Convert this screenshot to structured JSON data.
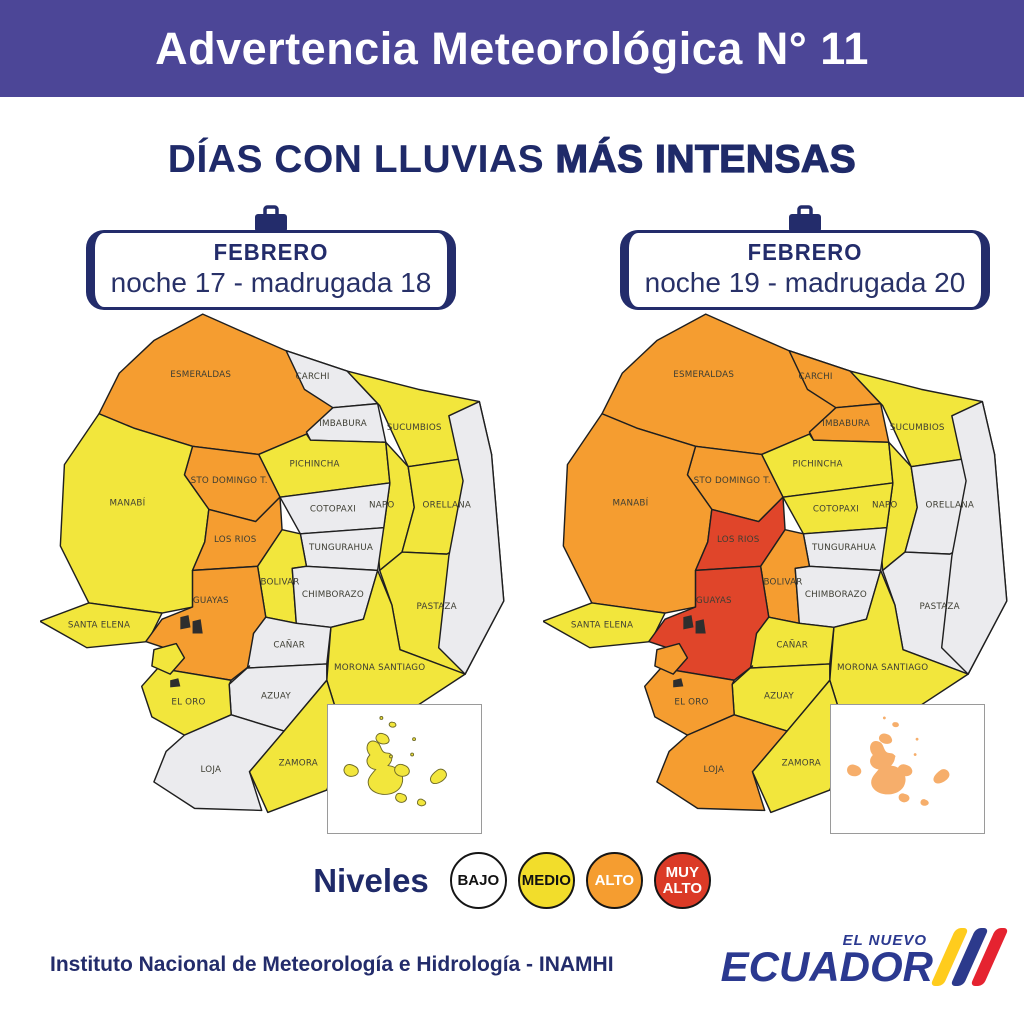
{
  "colors": {
    "header_bg": "#4c4697",
    "navy": "#232c6b",
    "border_ink": "#1f1f1f"
  },
  "header": {
    "title": "Advertencia Meteorológica N° 11"
  },
  "subtitle": {
    "normal": "DÍAS CON LLUVIAS ",
    "bold": "MÁS INTENSAS"
  },
  "level_colors": {
    "bajo": "#ebebee",
    "medio": "#f2e63c",
    "alto": "#f59d30",
    "muy_alto": "#e0452a"
  },
  "maps": [
    {
      "month": "FEBRERO",
      "date_range": "noche 17 - madrugada 18",
      "galapagos": {
        "fill": "#f2e63c",
        "stroke": "#6f6b28"
      },
      "levels": {
        "ESMERALDAS": "alto",
        "CARCHI": "bajo",
        "IMBABURA": "bajo",
        "PICHINCHA": "medio",
        "STO_DOMINGO": "alto",
        "SUCUMBIOS": "medio",
        "NAPO": "medio",
        "ORELLANA": "medio",
        "MANABI": "medio",
        "COTOPAXI": "bajo",
        "TUNGURAHUA": "bajo",
        "LOS_RIOS": "alto",
        "BOLIVAR": "medio",
        "PASTAZA": "medio",
        "CHIMBORAZO": "bajo",
        "SANTA_ELENA": "medio",
        "GUAYAS": "alto",
        "CANAR": "bajo",
        "MORONA": "medio",
        "AZUAY": "bajo",
        "EL_ORO": "medio",
        "LOJA": "bajo",
        "ZAMORA": "medio",
        "ORIENTE_E": "bajo",
        "PUNA": "medio"
      }
    },
    {
      "month": "FEBRERO",
      "date_range": "noche 19 - madrugada 20",
      "galapagos": {
        "fill": "#f6ae6b",
        "stroke": "none"
      },
      "levels": {
        "ESMERALDAS": "alto",
        "CARCHI": "alto",
        "IMBABURA": "alto",
        "PICHINCHA": "medio",
        "STO_DOMINGO": "alto",
        "SUCUMBIOS": "medio",
        "NAPO": "medio",
        "ORELLANA": "bajo",
        "MANABI": "alto",
        "COTOPAXI": "medio",
        "TUNGURAHUA": "bajo",
        "LOS_RIOS": "muy_alto",
        "BOLIVAR": "alto",
        "PASTAZA": "bajo",
        "CHIMBORAZO": "bajo",
        "SANTA_ELENA": "medio",
        "GUAYAS": "muy_alto",
        "CANAR": "medio",
        "MORONA": "medio",
        "AZUAY": "medio",
        "EL_ORO": "alto",
        "LOJA": "alto",
        "ZAMORA": "medio",
        "ORIENTE_E": "bajo",
        "PUNA": "alto"
      }
    }
  ],
  "province_labels": [
    {
      "id": "ESMERALDAS",
      "label": "ESMERALDAS"
    },
    {
      "id": "CARCHI",
      "label": "CARCHI"
    },
    {
      "id": "IMBABURA",
      "label": "IMBABURA"
    },
    {
      "id": "PICHINCHA",
      "label": "PICHINCHA"
    },
    {
      "id": "STO_DOMINGO",
      "label": "STO DOMINGO T."
    },
    {
      "id": "SUCUMBIOS",
      "label": "SUCUMBIOS"
    },
    {
      "id": "NAPO",
      "label": "NAPO"
    },
    {
      "id": "ORELLANA",
      "label": "ORELLANA"
    },
    {
      "id": "MANABI",
      "label": "MANABÍ"
    },
    {
      "id": "COTOPAXI",
      "label": "COTOPAXI"
    },
    {
      "id": "TUNGURAHUA",
      "label": "TUNGURAHUA"
    },
    {
      "id": "LOS_RIOS",
      "label": "LOS RIOS"
    },
    {
      "id": "BOLIVAR",
      "label": "BOLIVAR"
    },
    {
      "id": "PASTAZA",
      "label": "PASTAZA"
    },
    {
      "id": "CHIMBORAZO",
      "label": "CHIMBORAZO"
    },
    {
      "id": "SANTA_ELENA",
      "label": "SANTA ELENA"
    },
    {
      "id": "GUAYAS",
      "label": "GUAYAS"
    },
    {
      "id": "CANAR",
      "label": "CAÑAR"
    },
    {
      "id": "MORONA",
      "label": "MORONA SANTIAGO"
    },
    {
      "id": "AZUAY",
      "label": "AZUAY"
    },
    {
      "id": "EL_ORO",
      "label": "EL ORO"
    },
    {
      "id": "LOJA",
      "label": "LOJA"
    },
    {
      "id": "ZAMORA",
      "label": "ZAMORA"
    }
  ],
  "legend": {
    "title": "Niveles",
    "items": [
      {
        "label": "BAJO",
        "color": "#ffffff",
        "text_color": "#111111"
      },
      {
        "label": "MEDIO",
        "color": "#f2dd2b",
        "text_color": "#111111"
      },
      {
        "label": "ALTO",
        "color": "#f59d30",
        "text_color": "#ffffff"
      },
      {
        "label": "MUY ALTO",
        "color": "#db3a26",
        "text_color": "#ffffff"
      }
    ]
  },
  "footer": {
    "institute": "Instituto Nacional de Meteorología e Hidrología - INAMHI",
    "logo_top": "EL NUEVO",
    "logo_main": "ECUADOR",
    "logo_stripes": [
      "#ffcc1d",
      "#2c3a8c",
      "#e52330"
    ]
  }
}
